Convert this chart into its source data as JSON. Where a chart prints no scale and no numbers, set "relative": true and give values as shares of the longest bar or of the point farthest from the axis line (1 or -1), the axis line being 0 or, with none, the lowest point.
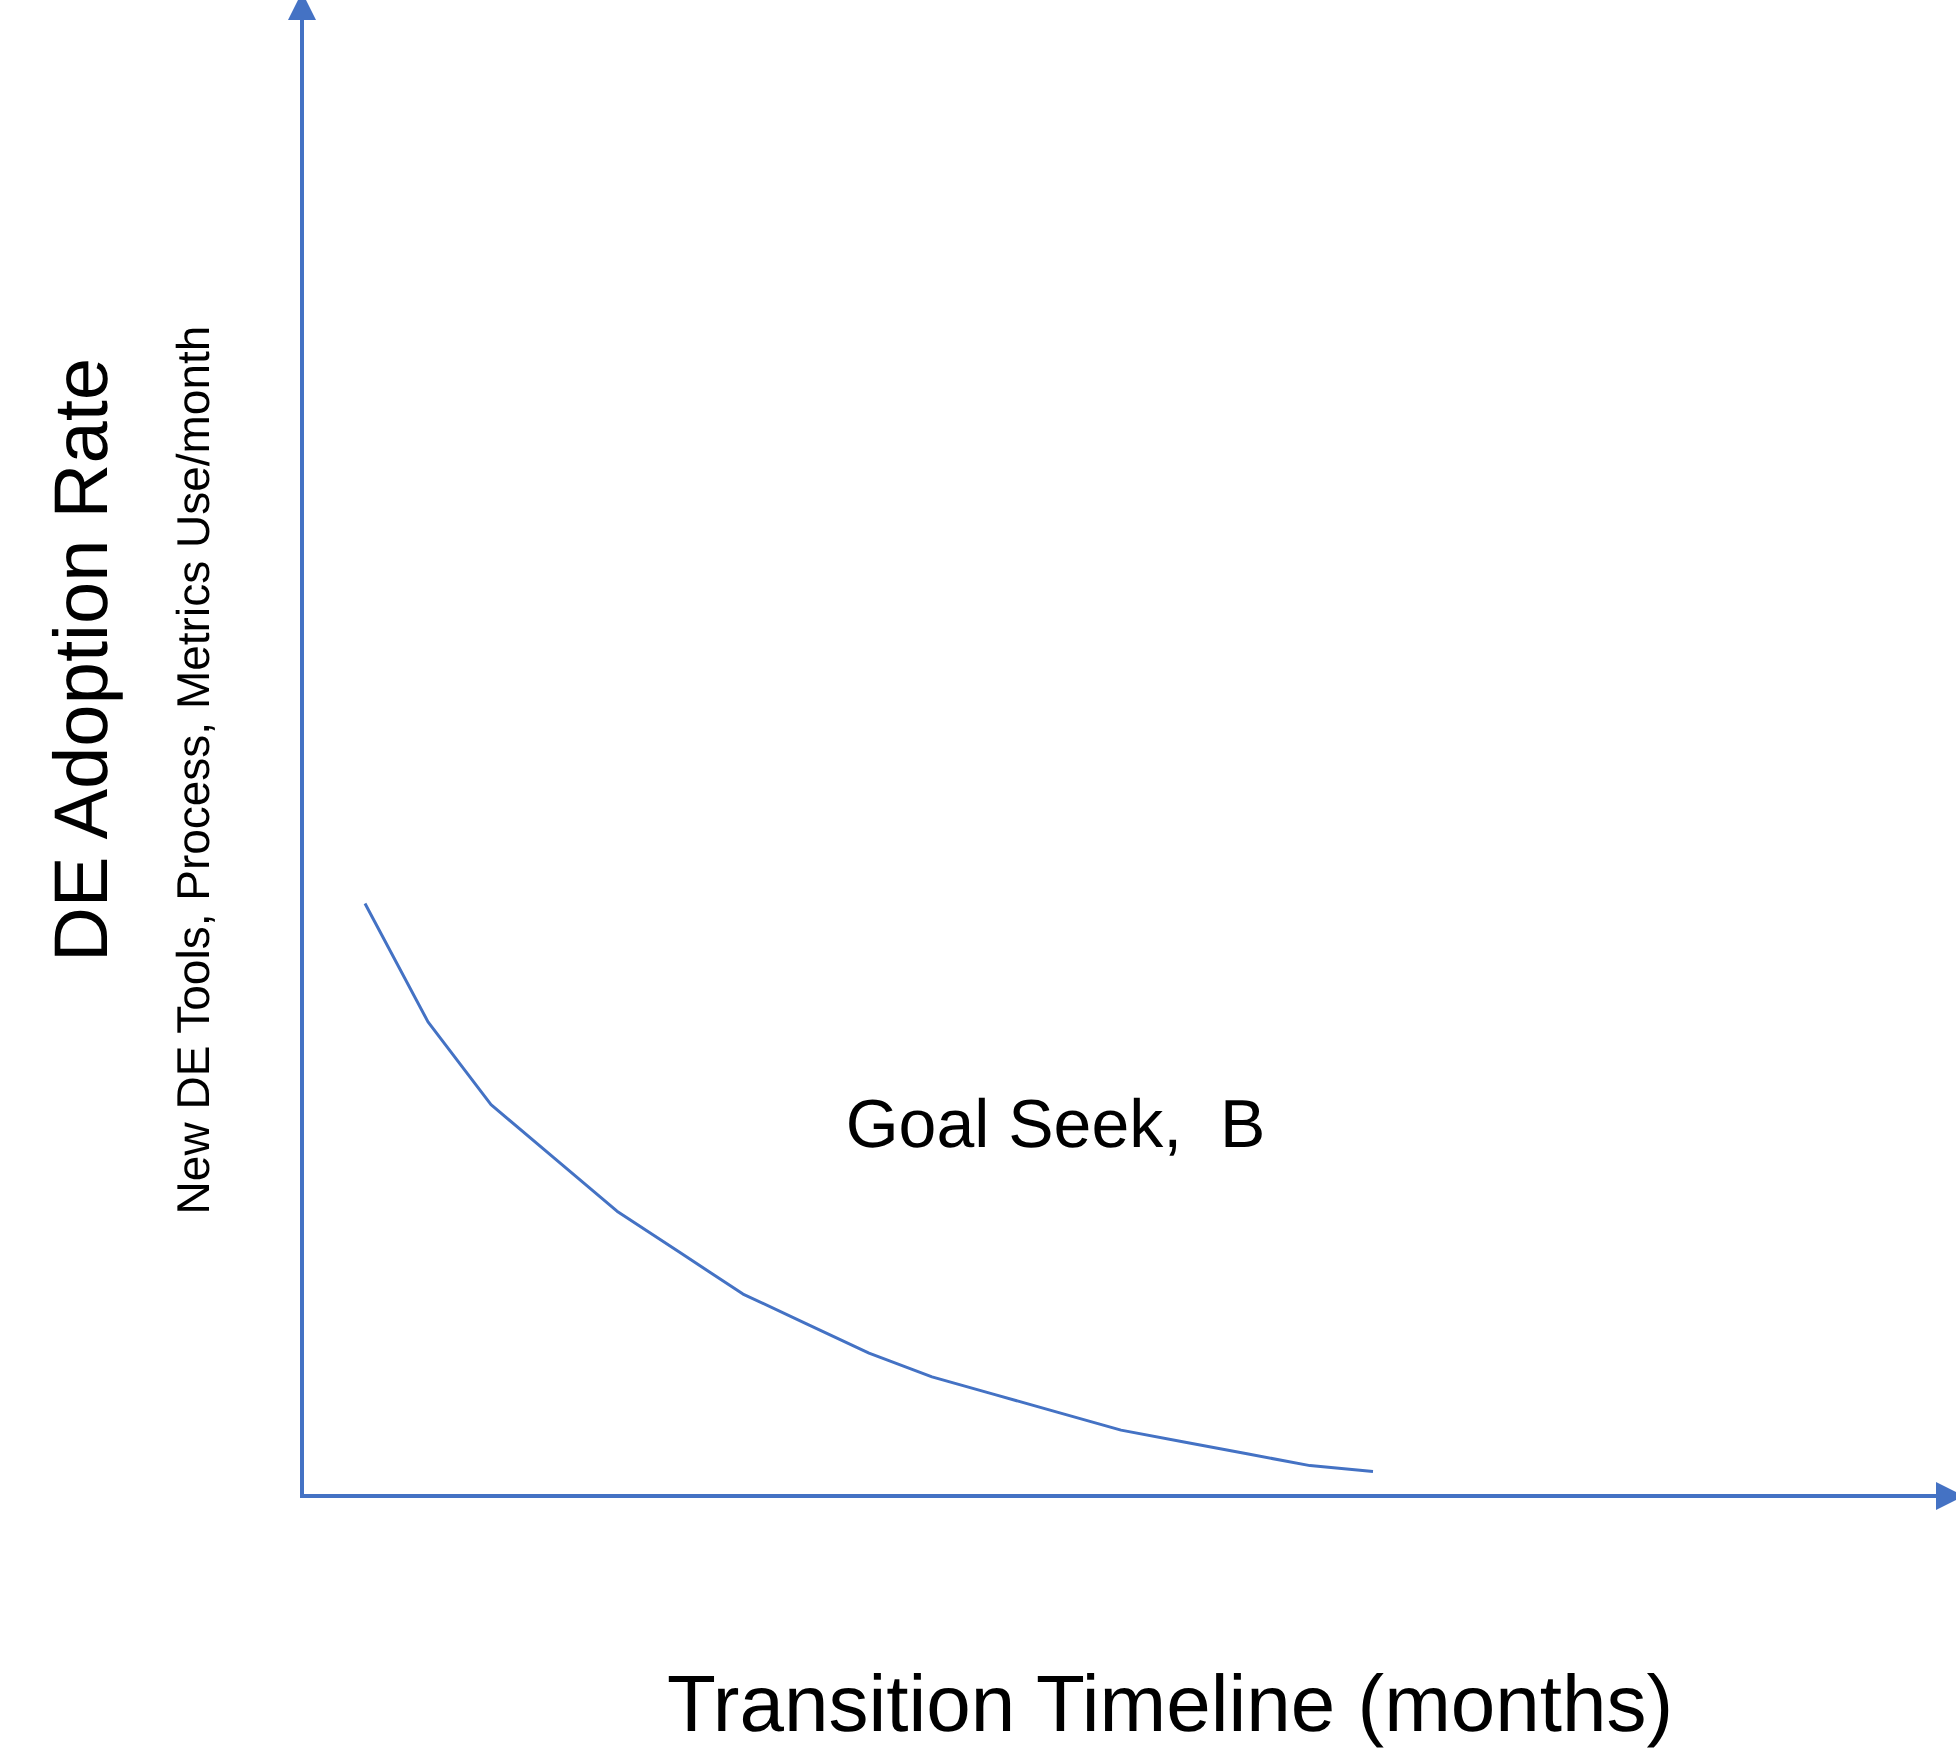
{
  "chart_data": {
    "type": "line",
    "relative": true,
    "xlabel": "Transition Timeline (months)",
    "ylabel": "DE Adoption Rate\nNew DE Tools, Process, Metrics Use/month",
    "annotations": [
      "Goal Seek,  B"
    ],
    "grid": false,
    "legend": false,
    "marker": "none",
    "categories": [
      null,
      null,
      null,
      null,
      null,
      null,
      null,
      null,
      null,
      null,
      null,
      null,
      null,
      null,
      null,
      null,
      null,
      null,
      null,
      null,
      null,
      null,
      null,
      null,
      null,
      null,
      null
    ],
    "series": [
      {
        "color": "#4472c4",
        "values": [
          null,
          1,
          0.8,
          0.66,
          0.57,
          0.48,
          0.41,
          0.34,
          0.29,
          0.24,
          0.2,
          0.17,
          0.14,
          0.11,
          0.09,
          0.07,
          0.05,
          0.04,
          null,
          null,
          null,
          null,
          null,
          null,
          null,
          null,
          null
        ]
      }
    ]
  }
}
